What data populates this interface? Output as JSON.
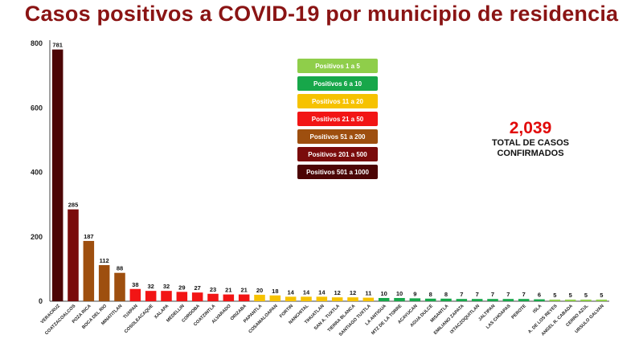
{
  "title": "Casos positivos a COVID-19  por municipio de residencia",
  "legend": [
    {
      "label": "Positivos  1 a 5",
      "color": "#8fce4a"
    },
    {
      "label": "Positivos  6 a 10",
      "color": "#17a74a"
    },
    {
      "label": "Positivos  11 a 20",
      "color": "#f6c200"
    },
    {
      "label": "Positivos  21 a 50",
      "color": "#f21515"
    },
    {
      "label": "Positivos  51 a 200",
      "color": "#9e4f0f"
    },
    {
      "label": "Positivos  201 a 500",
      "color": "#7a0b0b"
    },
    {
      "label": "Positivos  501 a 1000",
      "color": "#4c0505"
    }
  ],
  "total": {
    "value": "2,039",
    "label": "TOTAL DE CASOS CONFIRMADOS"
  },
  "chart_data": {
    "type": "bar",
    "categories": [
      "VERACRUZ",
      "COATZACOALCOS",
      "POZA RICA",
      "BOCA DEL RIO",
      "MINATITLAN",
      "TUXPAN",
      "COSOLEACAQUE",
      "XALAPA",
      "MEDELLIN",
      "CORDOBA",
      "COATZINTLA",
      "ALVARADO",
      "ORIZABA",
      "PAPANTLA",
      "COSAMALOAPAN",
      "FORTIN",
      "NANCHITAL",
      "TIHUATLAN",
      "SAN A. TUXTLA",
      "TIERRA BLANCA",
      "SANTIAGO TUXTLA",
      "LA ANTIGUA",
      "MTZ DE LA TORRE",
      "ACAYUCAN",
      "AGUA DULCE",
      "MISANTLA",
      "EMILIANO ZAPATA",
      "IXTACZOQUITLAN",
      "JALTIPAN",
      "LAS CHOAPAS",
      "PEROTE",
      "ISLA",
      "A. DE LOS REYES",
      "ANGEL R. CABADA",
      "CERRO AZUL",
      "URSULO GALVAN"
    ],
    "values": [
      781,
      285,
      187,
      112,
      88,
      38,
      32,
      32,
      29,
      27,
      23,
      21,
      21,
      20,
      18,
      14,
      14,
      14,
      12,
      12,
      11,
      10,
      10,
      9,
      8,
      8,
      7,
      7,
      7,
      7,
      7,
      6,
      5,
      5,
      5,
      5
    ],
    "colors": [
      "#4c0505",
      "#7a0b0b",
      "#9e4f0f",
      "#9e4f0f",
      "#9e4f0f",
      "#f21515",
      "#f21515",
      "#f21515",
      "#f21515",
      "#f21515",
      "#f21515",
      "#f21515",
      "#f21515",
      "#f6c200",
      "#f6c200",
      "#f6c200",
      "#f6c200",
      "#f6c200",
      "#f6c200",
      "#f6c200",
      "#f6c200",
      "#17a74a",
      "#17a74a",
      "#17a74a",
      "#17a74a",
      "#17a74a",
      "#17a74a",
      "#17a74a",
      "#17a74a",
      "#17a74a",
      "#17a74a",
      "#17a74a",
      "#8fce4a",
      "#8fce4a",
      "#8fce4a",
      "#8fce4a"
    ],
    "yticks": [
      "0",
      "200",
      "400",
      "600",
      "800"
    ],
    "ylim": [
      0,
      800
    ],
    "xlabel": "",
    "ylabel": "",
    "grid": false
  }
}
